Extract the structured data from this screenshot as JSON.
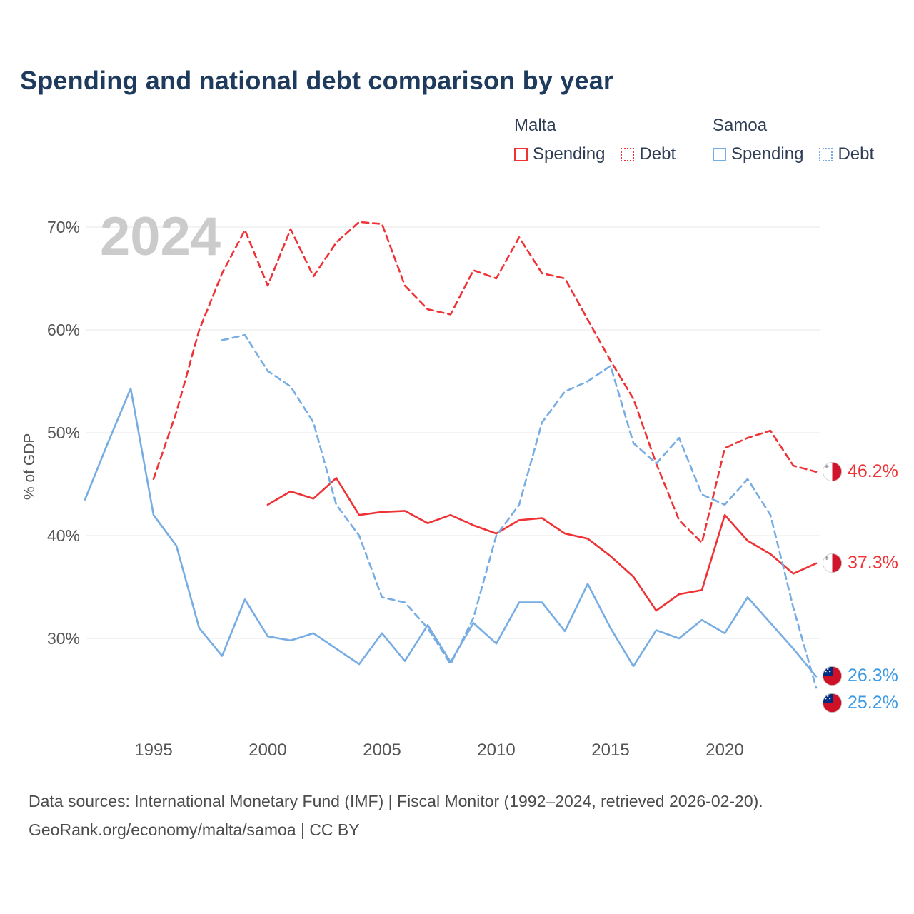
{
  "title": "Spending and national debt comparison by year",
  "watermark": "2024",
  "ylabel_text": "% of GDP",
  "sources": {
    "line1": "Data sources: International Monetary Fund (IMF) | Fiscal Monitor (1992–2024, retrieved 2026-02-20).",
    "line2": "GeoRank.org/economy/malta/samoa | CC BY"
  },
  "colors": {
    "malta": "#EE3235",
    "samoa": "#77ADE3",
    "malta_label": "#EE3235",
    "samoa_label": "#3D9AE4",
    "grid": "#ececec",
    "axis_text": "#555555",
    "title": "#1e3a5c",
    "watermark": "#cbcbcb"
  },
  "legend": {
    "groups": [
      {
        "label": "Malta",
        "entries": [
          {
            "label": "Spending",
            "style": "solid",
            "color": "#EE3235"
          },
          {
            "label": "Debt",
            "style": "dashed",
            "color": "#EE3235"
          }
        ]
      },
      {
        "label": "Samoa",
        "entries": [
          {
            "label": "Spending",
            "style": "solid",
            "color": "#77ADE3"
          },
          {
            "label": "Debt",
            "style": "dashed",
            "color": "#77ADE3"
          }
        ]
      }
    ]
  },
  "end_labels": [
    {
      "value": "46.2%",
      "y": 46.2,
      "color": "#EE3235",
      "flag": "malta",
      "name": "malta-debt-end-label"
    },
    {
      "value": "37.3%",
      "y": 37.3,
      "color": "#EE3235",
      "flag": "malta",
      "name": "malta-spending-end-label"
    },
    {
      "value": "26.3%",
      "y": 26.3,
      "color": "#3D9AE4",
      "flag": "samoa",
      "name": "samoa-spending-end-label"
    },
    {
      "value": "25.2%",
      "y": 25.2,
      "color": "#3D9AE4",
      "flag": "samoa",
      "name": "samoa-debt-end-label"
    }
  ],
  "chart_data": {
    "type": "line",
    "title": "Spending and national debt comparison by year",
    "xlabel": "",
    "ylabel": "% of GDP",
    "xlim": [
      1991.5,
      2025.3
    ],
    "ylim": [
      23,
      72.5
    ],
    "grid": true,
    "legend_position": "top-right",
    "x_ticks": [
      {
        "value": 1995,
        "label": "1995"
      },
      {
        "value": 2000,
        "label": "2000"
      },
      {
        "value": 2005,
        "label": "2005"
      },
      {
        "value": 2010,
        "label": "2010"
      },
      {
        "value": 2015,
        "label": "2015"
      },
      {
        "value": 2020,
        "label": "2020"
      }
    ],
    "y_ticks": [
      {
        "value": 30,
        "label": "30%"
      },
      {
        "value": 40,
        "label": "40%"
      },
      {
        "value": 50,
        "label": "50%"
      },
      {
        "value": 60,
        "label": "60%"
      },
      {
        "value": 70,
        "label": "70%"
      }
    ],
    "series": [
      {
        "name": "Malta Debt",
        "color": "#EE3235",
        "dash": "dashed",
        "x": [
          1995,
          1996,
          1997,
          1998,
          1999,
          2000,
          2001,
          2002,
          2003,
          2004,
          2005,
          2006,
          2007,
          2008,
          2009,
          2010,
          2011,
          2012,
          2013,
          2014,
          2015,
          2016,
          2017,
          2018,
          2019,
          2020,
          2021,
          2022,
          2023,
          2024
        ],
        "values": [
          45.5,
          52.0,
          60.0,
          65.5,
          69.7,
          64.3,
          69.8,
          65.2,
          68.5,
          70.5,
          70.3,
          64.3,
          62.0,
          61.5,
          65.8,
          65.0,
          69.0,
          65.5,
          65.0,
          61.0,
          57.0,
          53.3,
          47.0,
          41.5,
          39.3,
          48.5,
          49.5,
          50.2,
          46.8,
          46.2
        ]
      },
      {
        "name": "Malta Spending",
        "color": "#EE3235",
        "dash": "solid",
        "x": [
          2000,
          2001,
          2002,
          2003,
          2004,
          2005,
          2006,
          2007,
          2008,
          2009,
          2010,
          2011,
          2012,
          2013,
          2014,
          2015,
          2016,
          2017,
          2018,
          2019,
          2020,
          2021,
          2022,
          2023,
          2024
        ],
        "values": [
          43.0,
          44.3,
          43.6,
          45.6,
          42.0,
          42.3,
          42.4,
          41.2,
          42.0,
          41.0,
          40.2,
          41.5,
          41.7,
          40.2,
          39.7,
          38.0,
          36.0,
          32.7,
          34.3,
          34.7,
          42.0,
          39.5,
          38.2,
          36.3,
          37.3
        ]
      },
      {
        "name": "Samoa Debt",
        "color": "#77ADE3",
        "dash": "dashed",
        "x": [
          1998,
          1999,
          2000,
          2001,
          2002,
          2003,
          2004,
          2005,
          2006,
          2007,
          2008,
          2009,
          2010,
          2011,
          2012,
          2013,
          2014,
          2015,
          2016,
          2017,
          2018,
          2019,
          2020,
          2021,
          2022,
          2023,
          2024
        ],
        "values": [
          59.0,
          59.5,
          56.0,
          54.5,
          51.0,
          43.0,
          40.0,
          34.0,
          33.5,
          31.0,
          27.5,
          32.0,
          40.0,
          43.0,
          51.0,
          54.0,
          55.0,
          56.5,
          49.0,
          47.0,
          49.5,
          44.0,
          43.0,
          45.5,
          42.0,
          33.0,
          25.2
        ]
      },
      {
        "name": "Samoa Spending",
        "color": "#77ADE3",
        "dash": "solid",
        "x": [
          1992,
          1993,
          1994,
          1995,
          1996,
          1997,
          1998,
          1999,
          2000,
          2001,
          2002,
          2003,
          2004,
          2005,
          2006,
          2007,
          2008,
          2009,
          2010,
          2011,
          2012,
          2013,
          2014,
          2015,
          2016,
          2017,
          2018,
          2019,
          2020,
          2021,
          2022,
          2023,
          2024
        ],
        "values": [
          43.5,
          49.0,
          54.3,
          42.0,
          39.0,
          31.0,
          28.3,
          33.8,
          30.2,
          29.8,
          30.5,
          29.0,
          27.5,
          30.5,
          27.8,
          31.3,
          27.7,
          31.5,
          29.5,
          33.5,
          33.5,
          30.7,
          35.3,
          31.0,
          27.3,
          30.8,
          30.0,
          31.8,
          30.5,
          34.0,
          31.5,
          29.0,
          26.3
        ]
      }
    ]
  }
}
